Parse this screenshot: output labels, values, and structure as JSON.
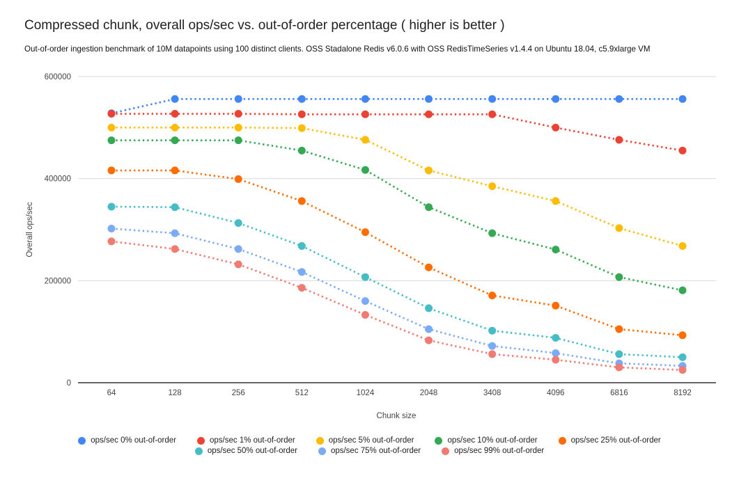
{
  "header": {
    "title": "Compressed chunk, overall ops/sec vs. out-of-order percentage ( higher is better )",
    "subtitle": "Out-of-order ingestion benchmark of 10M datapoints using 100 distinct clients. OSS Stadalone Redis v6.0.6 with OSS RedisTimeSeries v1.4.4 on Ubuntu 18.04, c5.9xlarge VM"
  },
  "chart_data": {
    "type": "line",
    "style": "dotted-lines-with-point-markers",
    "xlabel": "Chunk size",
    "ylabel": "Overall ops/sec",
    "categories": [
      "64",
      "128",
      "256",
      "512",
      "1024",
      "2048",
      "3408",
      "4096",
      "6816",
      "8192"
    ],
    "ylim": [
      0,
      600000
    ],
    "y_ticks": [
      {
        "v": 600000,
        "label": "600000"
      },
      {
        "v": 400000,
        "label": "400000"
      },
      {
        "v": 200000,
        "label": "200000"
      },
      {
        "v": 0,
        "label": "0"
      }
    ],
    "grid": "horizontal",
    "legend_position": "bottom",
    "series": [
      {
        "name": "ops/sec 0% out-of-order",
        "color": "#4285F4",
        "values": [
          528000,
          556000,
          556000,
          556000,
          556000,
          556000,
          556000,
          556000,
          556000,
          556000
        ]
      },
      {
        "name": "ops/sec 1% out-of-order",
        "color": "#EA4335",
        "values": [
          527000,
          527000,
          527000,
          526000,
          526000,
          526000,
          526000,
          500000,
          476000,
          455000
        ]
      },
      {
        "name": "ops/sec 5% out-of-order",
        "color": "#FBBC04",
        "values": [
          500000,
          500000,
          500000,
          499000,
          476000,
          416000,
          385000,
          356000,
          303000,
          268000
        ]
      },
      {
        "name": "ops/sec 10% out-of-order",
        "color": "#34A853",
        "values": [
          475000,
          475000,
          475000,
          455000,
          417000,
          344000,
          293000,
          261000,
          207000,
          181000
        ]
      },
      {
        "name": "ops/sec 25% out-of-order",
        "color": "#FF6D01",
        "values": [
          416000,
          416000,
          399000,
          356000,
          295000,
          226000,
          171000,
          151000,
          105000,
          93000
        ]
      },
      {
        "name": "ops/sec 50% out-of-order",
        "color": "#46BDC6",
        "values": [
          345000,
          344000,
          313000,
          268000,
          207000,
          146000,
          102000,
          88000,
          56000,
          50000
        ]
      },
      {
        "name": "ops/sec 75% out-of-order",
        "color": "#7BAAF7",
        "values": [
          302000,
          293000,
          262000,
          217000,
          160000,
          105000,
          72000,
          58000,
          38000,
          33000
        ]
      },
      {
        "name": "ops/sec 99% out-of-order",
        "color": "#F07B72",
        "values": [
          277000,
          262000,
          232000,
          186000,
          133000,
          83000,
          56000,
          45000,
          30000,
          25000
        ]
      }
    ],
    "colors": {
      "gridline": "#d9d9d9",
      "baseline": "#333333",
      "tick_text": "#444444",
      "legend_text": "#212121"
    }
  }
}
